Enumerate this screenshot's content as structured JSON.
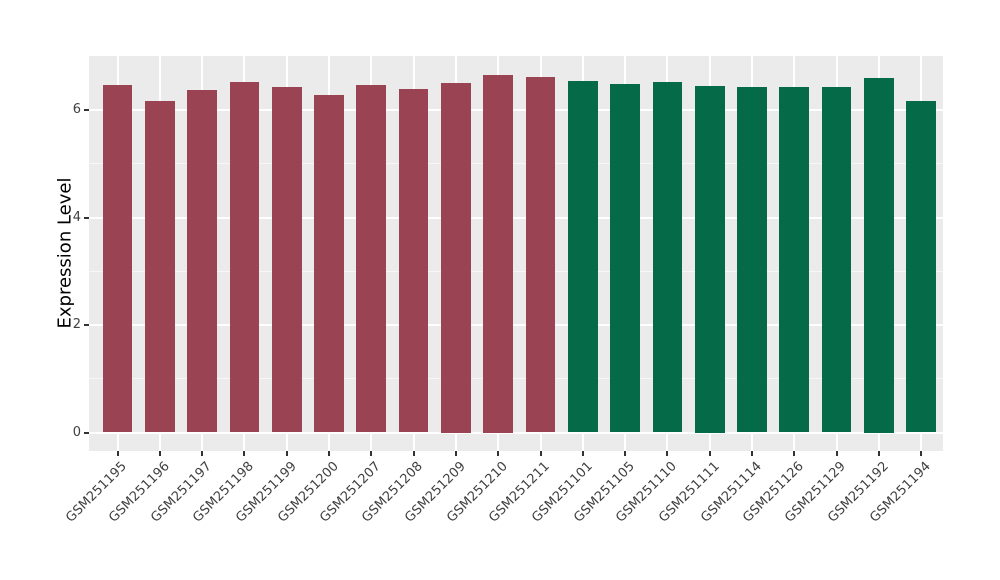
{
  "figure": {
    "background_color": "#FFFFFF",
    "panel_background_color": "#EBEBEB",
    "major_gridline_color": "#FFFFFF",
    "minor_gridline_color": "#F7F7F7",
    "tick_color": "#333333",
    "axis_text_color": "#404040"
  },
  "chart_data": {
    "type": "bar",
    "title": "",
    "xlabel": "",
    "ylabel": "Expression Level",
    "ylim": [
      0,
      7
    ],
    "yticks": [
      0,
      2,
      4,
      6
    ],
    "ytick_labels": [
      "0",
      "2",
      "4",
      "6"
    ],
    "minor_gridlines_at": [
      1,
      3,
      5
    ],
    "grid": true,
    "legend_position": "none",
    "bar_width_ratio": 0.7,
    "categories": [
      "GSM251195",
      "GSM251196",
      "GSM251197",
      "GSM251198",
      "GSM251199",
      "GSM251200",
      "GSM251207",
      "GSM251208",
      "GSM251209",
      "GSM251210",
      "GSM251211",
      "GSM251101",
      "GSM251105",
      "GSM251110",
      "GSM251111",
      "GSM251114",
      "GSM251126",
      "GSM251129",
      "GSM251192",
      "GSM251194"
    ],
    "values": [
      6.47,
      6.17,
      6.37,
      6.52,
      6.43,
      6.28,
      6.46,
      6.39,
      6.5,
      6.65,
      6.61,
      6.54,
      6.49,
      6.53,
      6.45,
      6.42,
      6.43,
      6.43,
      6.6,
      6.17
    ],
    "group_of_bar": [
      "group1",
      "group1",
      "group1",
      "group1",
      "group1",
      "group1",
      "group1",
      "group1",
      "group1",
      "group1",
      "group1",
      "group2",
      "group2",
      "group2",
      "group2",
      "group2",
      "group2",
      "group2",
      "group2",
      "group2"
    ],
    "group_colors": {
      "group1": "#9A4453",
      "group2": "#046A48"
    }
  }
}
